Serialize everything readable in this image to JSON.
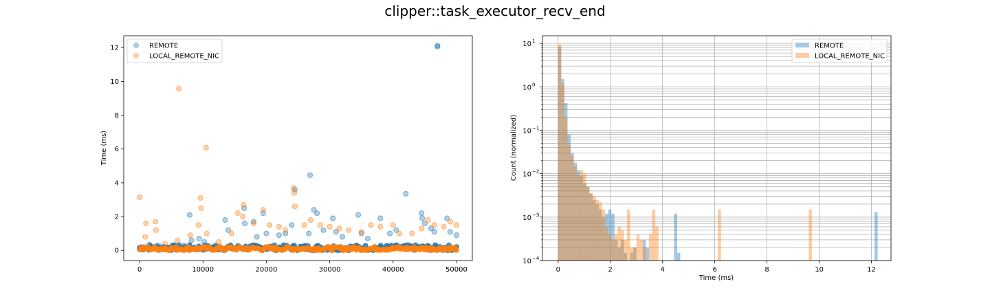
{
  "figure": {
    "title": "clipper::task_executor_recv_end"
  },
  "colors": {
    "remote": "#1f77b4",
    "local": "#ff7f0e",
    "grid": "#b0b0b0",
    "axis": "#000000"
  },
  "chart_data": [
    {
      "type": "scatter",
      "title": "",
      "xlabel": "",
      "ylabel": "Time (ms)",
      "xlim": [
        -2500,
        52500
      ],
      "ylim": [
        -0.6,
        12.7
      ],
      "xticks": [
        0,
        10000,
        20000,
        30000,
        40000,
        50000
      ],
      "xtick_labels": [
        "0",
        "10000",
        "20000",
        "30000",
        "40000",
        "50000"
      ],
      "yticks": [
        0,
        2,
        4,
        6,
        8,
        10,
        12
      ],
      "ytick_labels": [
        "0",
        "2",
        "4",
        "6",
        "8",
        "10",
        "12"
      ],
      "grid": false,
      "legend": "upper-left",
      "series": [
        {
          "name": "REMOTE",
          "color": "#1f77b4",
          "points": [
            [
              0,
              0.1
            ],
            [
              300,
              0.2
            ],
            [
              700,
              0.15
            ],
            [
              1500,
              0.35
            ],
            [
              2200,
              0.2
            ],
            [
              3000,
              0.3
            ],
            [
              5000,
              0.25
            ],
            [
              7000,
              0.3
            ],
            [
              7900,
              2.1
            ],
            [
              8200,
              0.6
            ],
            [
              9400,
              0.7
            ],
            [
              10200,
              0.5
            ],
            [
              12000,
              0.3
            ],
            [
              13500,
              1.8
            ],
            [
              14000,
              1.2
            ],
            [
              16500,
              2.5
            ],
            [
              16600,
              1.6
            ],
            [
              18000,
              1.7
            ],
            [
              18500,
              0.8
            ],
            [
              19500,
              2.2
            ],
            [
              20000,
              1.0
            ],
            [
              22000,
              0.9
            ],
            [
              23000,
              1.0
            ],
            [
              24500,
              3.6
            ],
            [
              24000,
              1.5
            ],
            [
              26900,
              4.45
            ],
            [
              26700,
              1.0
            ],
            [
              27500,
              2.4
            ],
            [
              28000,
              2.2
            ],
            [
              29000,
              1.2
            ],
            [
              30500,
              1.9
            ],
            [
              31000,
              1.1
            ],
            [
              32000,
              0.8
            ],
            [
              34500,
              2.1
            ],
            [
              35000,
              1.0
            ],
            [
              36000,
              0.7
            ],
            [
              38000,
              1.9
            ],
            [
              39500,
              1.0
            ],
            [
              40500,
              1.2
            ],
            [
              42000,
              3.35
            ],
            [
              44500,
              2.2
            ],
            [
              44600,
              1.9
            ],
            [
              45000,
              1.6
            ],
            [
              46000,
              1.3
            ],
            [
              46500,
              1.1
            ],
            [
              47000,
              12.05
            ],
            [
              47000,
              12.12
            ],
            [
              48500,
              1.9
            ],
            [
              49000,
              1.1
            ],
            [
              50000,
              0.9
            ]
          ]
        },
        {
          "name": "LOCAL_REMOTE_NIC",
          "color": "#ff7f0e",
          "points": [
            [
              0,
              3.15
            ],
            [
              200,
              0.1
            ],
            [
              900,
              0.8
            ],
            [
              1000,
              1.6
            ],
            [
              2500,
              1.7
            ],
            [
              2600,
              1.2
            ],
            [
              4000,
              0.4
            ],
            [
              6200,
              9.57
            ],
            [
              6000,
              0.6
            ],
            [
              8000,
              0.9
            ],
            [
              9300,
              1.5
            ],
            [
              9600,
              3.1
            ],
            [
              9700,
              2.5
            ],
            [
              10500,
              6.08
            ],
            [
              10600,
              1.0
            ],
            [
              12500,
              0.5
            ],
            [
              14500,
              1.0
            ],
            [
              15500,
              2.2
            ],
            [
              16400,
              2.7
            ],
            [
              16300,
              2.0
            ],
            [
              18000,
              1.6
            ],
            [
              19500,
              2.4
            ],
            [
              20500,
              1.5
            ],
            [
              22000,
              1.4
            ],
            [
              23000,
              1.2
            ],
            [
              24300,
              3.7
            ],
            [
              24400,
              3.4
            ],
            [
              24500,
              2.6
            ],
            [
              26000,
              1.5
            ],
            [
              27000,
              1.8
            ],
            [
              28500,
              1.5
            ],
            [
              30000,
              1.4
            ],
            [
              31500,
              1.3
            ],
            [
              33000,
              1.2
            ],
            [
              35000,
              1.1
            ],
            [
              36500,
              1.5
            ],
            [
              38000,
              1.4
            ],
            [
              40000,
              1.5
            ],
            [
              41000,
              1.0
            ],
            [
              43000,
              1.0
            ],
            [
              44500,
              1.3
            ],
            [
              45500,
              1.8
            ],
            [
              46500,
              1.5
            ],
            [
              48000,
              1.4
            ],
            [
              49000,
              1.7
            ],
            [
              50000,
              1.5
            ]
          ]
        }
      ]
    },
    {
      "type": "bar",
      "title": "",
      "xlabel": "Time (ms)",
      "ylabel": "Count (normalized)",
      "xscale": "linear",
      "yscale": "log",
      "xlim": [
        -0.6,
        12.75
      ],
      "ylim": [
        0.0001,
        15
      ],
      "xticks": [
        0,
        2,
        4,
        6,
        8,
        10,
        12
      ],
      "xtick_labels": [
        "0",
        "2",
        "4",
        "6",
        "8",
        "10",
        "12"
      ],
      "yticks": [
        0.0001,
        0.001,
        0.01,
        0.1,
        1,
        10
      ],
      "ytick_labels": [
        "10",
        "10",
        "10",
        "10",
        "10",
        "10"
      ],
      "ytick_exponents": [
        "−4",
        "−3",
        "−2",
        "−1",
        "0",
        "1"
      ],
      "grid": true,
      "legend": "upper-right",
      "bin_width": 0.12,
      "series": [
        {
          "name": "REMOTE",
          "color": "#1f77b4",
          "bins": [
            [
              0.0,
              8.5
            ],
            [
              0.12,
              1.5
            ],
            [
              0.24,
              0.42
            ],
            [
              0.36,
              0.08
            ],
            [
              0.48,
              0.03
            ],
            [
              0.6,
              0.018
            ],
            [
              0.72,
              0.012
            ],
            [
              0.84,
              0.009
            ],
            [
              0.96,
              0.006
            ],
            [
              1.08,
              0.005
            ],
            [
              1.2,
              0.0035
            ],
            [
              1.32,
              0.0025
            ],
            [
              1.44,
              0.002
            ],
            [
              1.56,
              0.0015
            ],
            [
              1.68,
              0.001
            ],
            [
              1.8,
              0.0012
            ],
            [
              1.92,
              0.0015
            ],
            [
              2.04,
              0.0012
            ],
            [
              2.16,
              0.0003
            ],
            [
              2.28,
              0.0002
            ],
            [
              2.4,
              0.0003
            ],
            [
              2.52,
              0.00015
            ],
            [
              2.76,
              0.00015
            ],
            [
              2.88,
              0.0002
            ],
            [
              3.24,
              0.0003
            ],
            [
              3.36,
              0.0002
            ],
            [
              4.44,
              0.0012
            ],
            [
              4.56,
              0.00015
            ],
            [
              12.12,
              0.0013
            ]
          ]
        },
        {
          "name": "LOCAL_REMOTE_NIC",
          "color": "#ff7f0e",
          "bins": [
            [
              0.0,
              9.5
            ],
            [
              0.12,
              1.2
            ],
            [
              0.24,
              0.2
            ],
            [
              0.36,
              0.045
            ],
            [
              0.48,
              0.025
            ],
            [
              0.6,
              0.015
            ],
            [
              0.72,
              0.009
            ],
            [
              0.84,
              0.012
            ],
            [
              0.96,
              0.01
            ],
            [
              1.08,
              0.005
            ],
            [
              1.2,
              0.0035
            ],
            [
              1.32,
              0.003
            ],
            [
              1.44,
              0.0025
            ],
            [
              1.56,
              0.0022
            ],
            [
              1.68,
              0.0015
            ],
            [
              1.8,
              0.0006
            ],
            [
              1.92,
              0.0004
            ],
            [
              2.04,
              0.0003
            ],
            [
              2.16,
              0.0004
            ],
            [
              2.28,
              0.0006
            ],
            [
              2.4,
              0.0005
            ],
            [
              2.52,
              0.0003
            ],
            [
              2.64,
              0.0015
            ],
            [
              2.76,
              0.0002
            ],
            [
              2.88,
              0.0002
            ],
            [
              3.0,
              0.0004
            ],
            [
              3.12,
              0.0003
            ],
            [
              3.24,
              0.0002
            ],
            [
              3.48,
              0.0004
            ],
            [
              3.6,
              0.0015
            ],
            [
              3.72,
              0.0006
            ],
            [
              6.12,
              0.0015
            ],
            [
              9.6,
              0.0015
            ]
          ]
        }
      ]
    }
  ]
}
